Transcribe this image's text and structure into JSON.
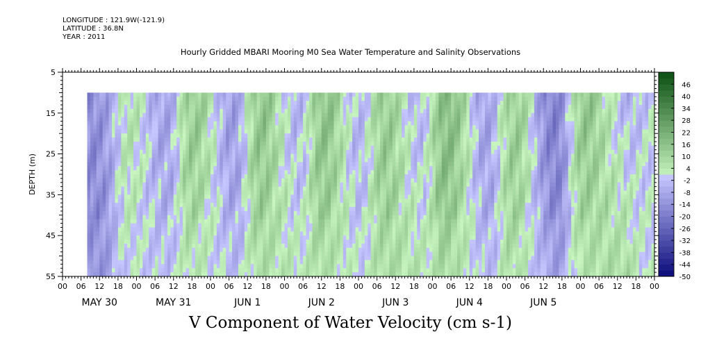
{
  "header": {
    "longitude": "LONGITUDE : 121.9W(-121.9)",
    "latitude": "LATITUDE : 36.8N",
    "year": "YEAR : 2011"
  },
  "chart_data": {
    "type": "heatmap",
    "title": "Hourly Gridded MBARI Mooring M0 Sea Water Temperature and Salinity Observations",
    "xlabel": "V Component of Water Velocity (cm s-1)",
    "ylabel": "DEPTH (m)",
    "ylim": [
      55,
      5
    ],
    "y_ticks": [
      5,
      15,
      25,
      35,
      45,
      55
    ],
    "x_hour_ticks": [
      "00",
      "06",
      "12",
      "18",
      "00",
      "06",
      "12",
      "18",
      "00",
      "06",
      "12",
      "18",
      "00",
      "06",
      "12",
      "18",
      "00",
      "06",
      "12",
      "18",
      "00",
      "06",
      "12",
      "18",
      "00",
      "06",
      "12",
      "18",
      "00",
      "06",
      "12",
      "18",
      "00"
    ],
    "x_day_labels": [
      "MAY 30",
      "MAY 31",
      "JUN  1",
      "JUN  2",
      "JUN  3",
      "JUN  4",
      "JUN  5"
    ],
    "data_start_hour": 8,
    "data_top_depth": 10,
    "colorbar_ticks": [
      46,
      40,
      34,
      28,
      22,
      16,
      10,
      4,
      -2,
      -8,
      -14,
      -20,
      -26,
      -32,
      -38,
      -44,
      -50
    ],
    "colorbar_range": [
      -50,
      52
    ],
    "colors": {
      "negative_dark": "#0a0a7a",
      "negative_light": "#c6c6ff",
      "positive_light": "#c8f5c0",
      "positive_dark": "#0b4f12",
      "zero": "#e6f7e0"
    },
    "velocity_bands": [
      {
        "center_hour": 12,
        "value": -16
      },
      {
        "center_hour": 22,
        "value": 12
      },
      {
        "center_hour": 31,
        "value": -14
      },
      {
        "center_hour": 44,
        "value": 18
      },
      {
        "center_hour": 54,
        "value": -18
      },
      {
        "center_hour": 65,
        "value": 24
      },
      {
        "center_hour": 74,
        "value": -12
      },
      {
        "center_hour": 86,
        "value": 22
      },
      {
        "center_hour": 96,
        "value": -16
      },
      {
        "center_hour": 104,
        "value": 26
      },
      {
        "center_hour": 113,
        "value": -10
      },
      {
        "center_hour": 126,
        "value": 22
      },
      {
        "center_hour": 137,
        "value": -18
      },
      {
        "center_hour": 146,
        "value": 20
      },
      {
        "center_hour": 158,
        "value": -22
      },
      {
        "center_hour": 171,
        "value": 24
      },
      {
        "center_hour": 178,
        "value": -8
      }
    ]
  }
}
